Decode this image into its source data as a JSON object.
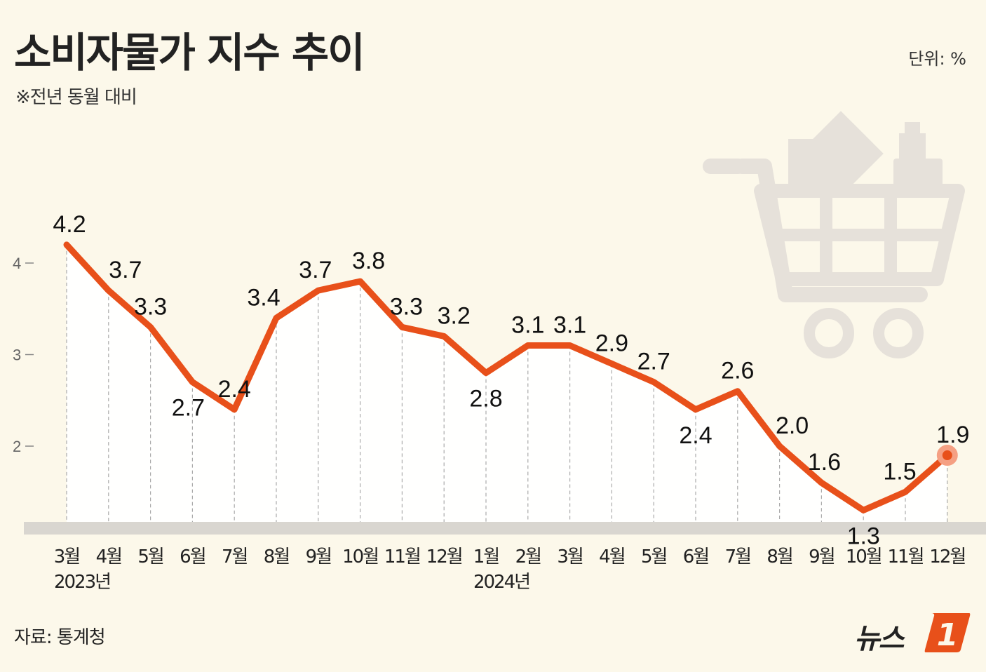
{
  "header": {
    "title": "소비자물가 지수 추이",
    "subtitle": "※전년 동월 대비",
    "unit": "단위: %"
  },
  "footer": {
    "source": "자료: 통계청",
    "logo_text": "뉴스",
    "logo_mark": "1"
  },
  "colors": {
    "background": "#fcf8ea",
    "line": "#e8501a",
    "highlight": "#f5a083",
    "cart": "#e6e1da"
  },
  "chart_data": {
    "type": "line",
    "categories": [
      "3월",
      "4월",
      "5월",
      "6월",
      "7월",
      "8월",
      "9월",
      "10월",
      "11월",
      "12월",
      "1월",
      "2월",
      "3월",
      "4월",
      "5월",
      "6월",
      "7월",
      "8월",
      "9월",
      "10월",
      "11월",
      "12월"
    ],
    "year_labels": [
      {
        "label": "2023년",
        "category_index": 0
      },
      {
        "label": "2024년",
        "category_index": 10
      }
    ],
    "values": [
      4.2,
      3.7,
      3.3,
      2.7,
      2.4,
      3.4,
      3.7,
      3.8,
      3.3,
      3.2,
      2.8,
      3.1,
      3.1,
      2.9,
      2.7,
      2.4,
      2.6,
      2.0,
      1.6,
      1.3,
      1.5,
      1.9
    ],
    "value_labels": [
      "4.2",
      "3.7",
      "3.3",
      "2.7",
      "2.4",
      "3.4",
      "3.7",
      "3.8",
      "3.3",
      "3.2",
      "2.8",
      "3.1",
      "3.1",
      "2.9",
      "2.7",
      "2.4",
      "2.6",
      "2.0",
      "1.6",
      "1.3",
      "1.5",
      "1.9"
    ],
    "yticks": [
      2,
      3,
      4
    ],
    "ytick_labels": [
      "2",
      "3",
      "4"
    ],
    "ylim": [
      0.9,
      4.6
    ],
    "highlight_index": 21,
    "grid": false,
    "legend": "none"
  }
}
